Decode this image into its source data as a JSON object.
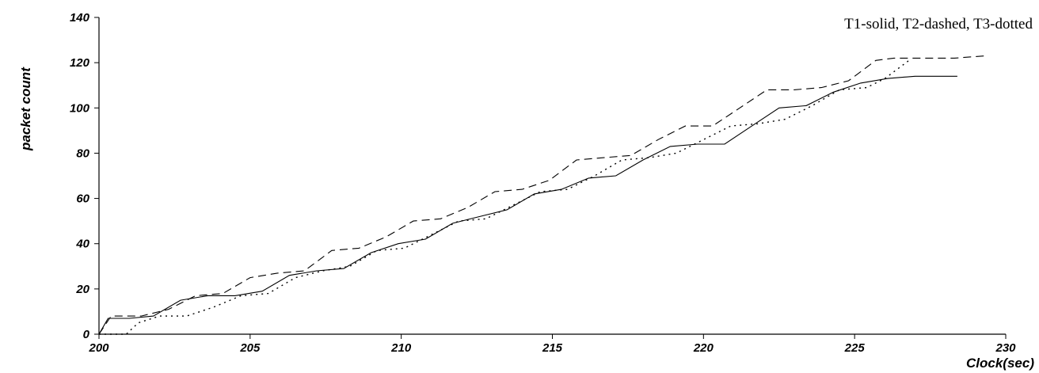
{
  "chart_data": {
    "type": "line",
    "title": "",
    "xlabel": "Clock(sec)",
    "ylabel": "packet count",
    "xlim": [
      200,
      230
    ],
    "ylim": [
      0,
      140
    ],
    "xticks": [
      200,
      205,
      210,
      215,
      220,
      225,
      230
    ],
    "yticks": [
      0,
      20,
      40,
      60,
      80,
      100,
      120,
      140
    ],
    "grid": false,
    "legend_text": "T1-solid, T2-dashed, T3-dotted",
    "legend_position": "top-right",
    "series": [
      {
        "name": "T1",
        "style": "solid",
        "x": [
          200.0,
          200.3,
          201.0,
          201.8,
          202.7,
          203.6,
          204.5,
          205.4,
          206.3,
          207.2,
          208.1,
          209.0,
          209.9,
          210.8,
          211.7,
          212.6,
          213.5,
          214.4,
          215.3,
          216.2,
          217.1,
          218.0,
          218.9,
          219.8,
          220.7,
          221.6,
          222.5,
          223.4,
          224.3,
          225.2,
          226.1,
          227.0,
          227.8,
          228.4
        ],
        "y": [
          0,
          7,
          7,
          8,
          15,
          17,
          17,
          19,
          26,
          28,
          29,
          36,
          40,
          42,
          49,
          52,
          55,
          62,
          64,
          69,
          70,
          77,
          83,
          84,
          84,
          92,
          100,
          101,
          107,
          111,
          113,
          114,
          114,
          114
        ]
      },
      {
        "name": "T2",
        "style": "dashed",
        "x": [
          200.0,
          200.4,
          201.4,
          202.3,
          203.2,
          204.1,
          205.0,
          205.9,
          206.8,
          207.7,
          208.6,
          209.5,
          210.4,
          211.3,
          212.2,
          213.1,
          214.0,
          214.9,
          215.8,
          216.7,
          217.6,
          218.5,
          219.4,
          220.3,
          221.2,
          222.1,
          223.0,
          223.9,
          224.8,
          225.7,
          226.3,
          227.2,
          228.3,
          229.3
        ],
        "y": [
          0,
          8,
          8,
          11,
          17,
          18,
          25,
          27,
          28,
          37,
          38,
          43,
          50,
          51,
          56,
          63,
          64,
          68,
          77,
          78,
          79,
          86,
          92,
          92,
          100,
          108,
          108,
          109,
          112,
          121,
          122,
          122,
          122,
          123
        ]
      },
      {
        "name": "T3",
        "style": "dotted",
        "x": [
          200.0,
          200.9,
          201.3,
          202.0,
          202.9,
          203.8,
          204.7,
          205.6,
          206.5,
          207.4,
          208.3,
          209.2,
          210.1,
          211.0,
          211.9,
          212.8,
          213.7,
          214.6,
          215.5,
          216.4,
          217.3,
          218.2,
          219.1,
          220.0,
          220.9,
          221.8,
          222.7,
          223.6,
          224.5,
          225.4,
          226.0,
          226.8
        ],
        "y": [
          0,
          0,
          5,
          8,
          8,
          12,
          17,
          18,
          25,
          28,
          30,
          37,
          38,
          44,
          50,
          51,
          57,
          63,
          64,
          70,
          77,
          78,
          80,
          86,
          92,
          93,
          95,
          101,
          108,
          109,
          113,
          121
        ]
      }
    ]
  }
}
